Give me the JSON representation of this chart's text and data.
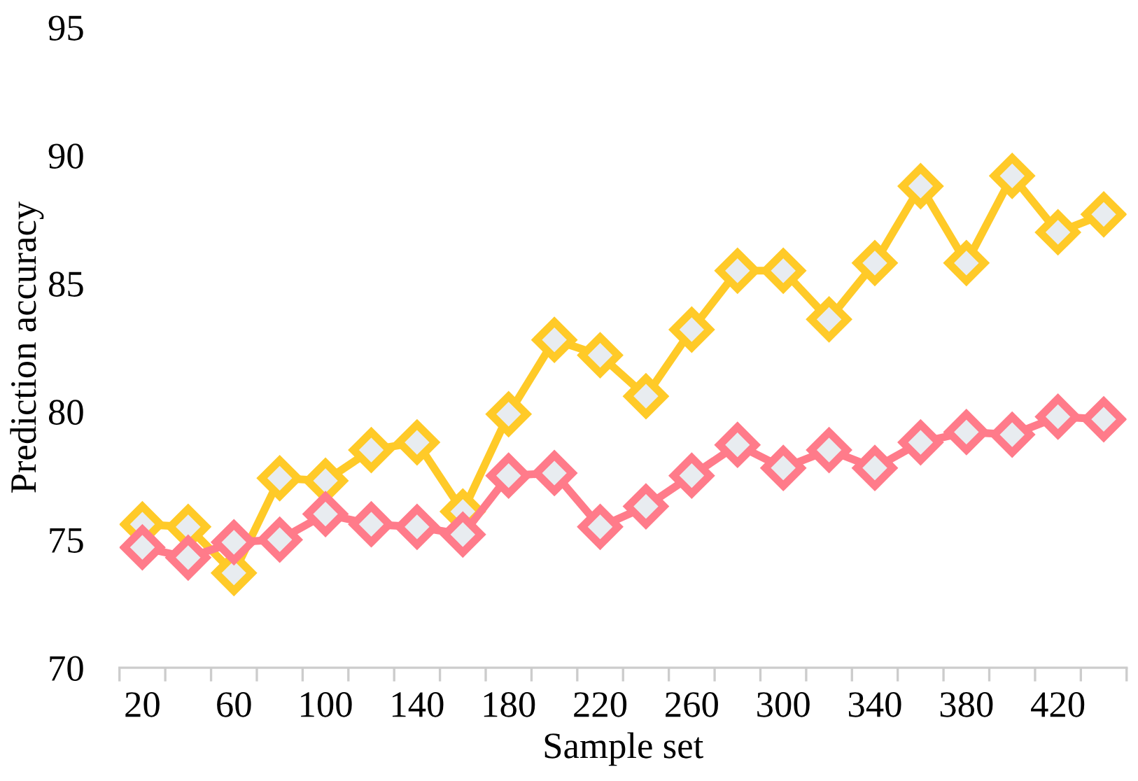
{
  "chart_data": {
    "type": "line",
    "xlabel": "Sample set",
    "ylabel": "Prediction accuracy",
    "categories": [
      "20",
      null,
      "60",
      null,
      "100",
      null,
      "140",
      null,
      "180",
      null,
      "220",
      null,
      "260",
      null,
      "300",
      null,
      "340",
      null,
      "380",
      null,
      "420",
      null
    ],
    "series": [
      {
        "color": "#ffca28",
        "values": [
          75.6,
          75.5,
          73.7,
          77.4,
          77.3,
          78.5,
          78.8,
          76.1,
          79.9,
          82.8,
          82.2,
          80.6,
          83.2,
          85.5,
          85.5,
          83.6,
          85.8,
          88.8,
          85.8,
          89.2,
          87.0,
          87.7
        ]
      },
      {
        "color": "#ff7b8a",
        "values": [
          74.7,
          74.3,
          74.9,
          75.0,
          76.0,
          75.6,
          75.5,
          75.2,
          77.5,
          77.6,
          75.5,
          76.3,
          77.5,
          78.7,
          77.8,
          78.5,
          77.8,
          78.8,
          79.2,
          79.1,
          79.8,
          79.7
        ]
      }
    ],
    "ylim": [
      70,
      95
    ],
    "yticks": [
      70,
      75,
      80,
      85,
      90,
      95
    ],
    "marker": "diamond",
    "line_style": "solid",
    "grid": false,
    "legend": false
  }
}
